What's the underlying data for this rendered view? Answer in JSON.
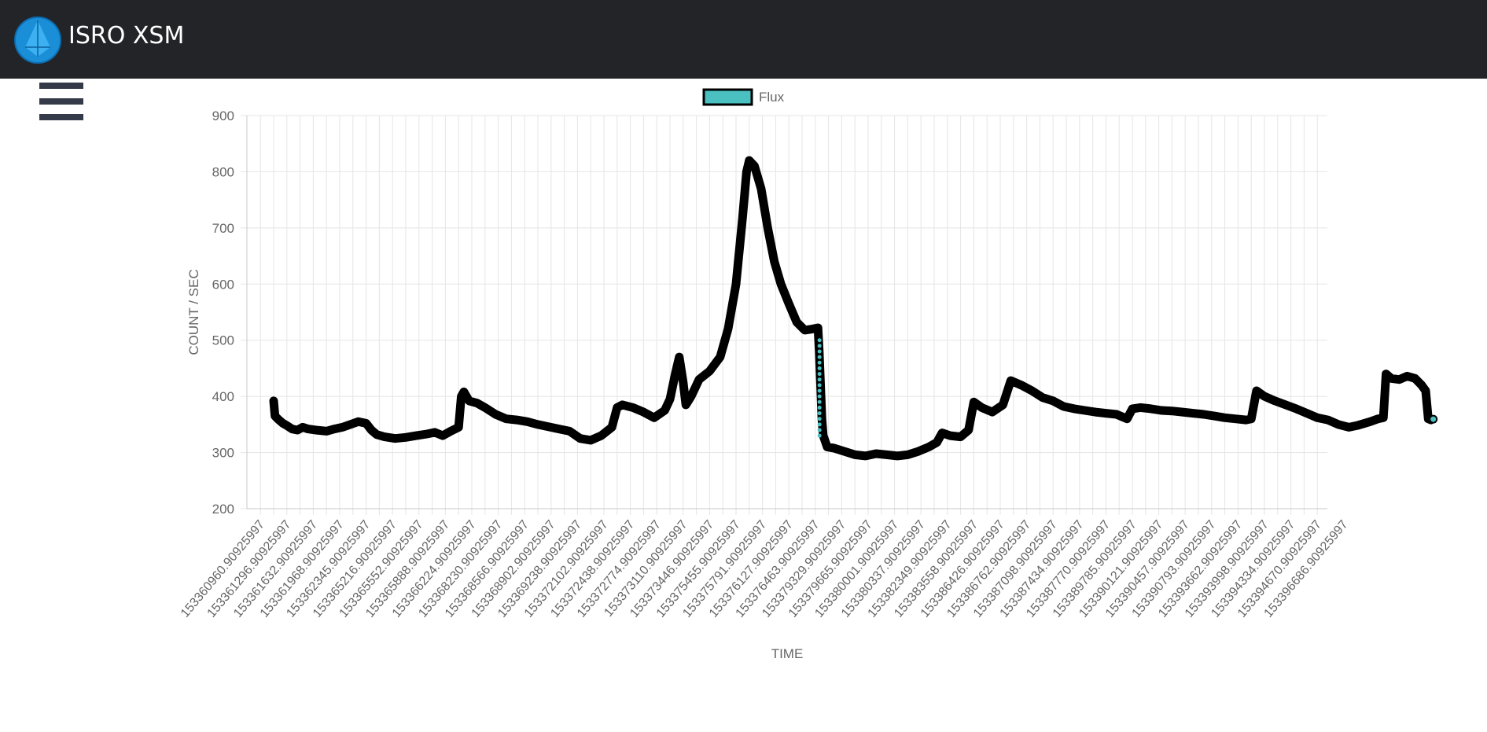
{
  "app": {
    "title": "ISRO XSM"
  },
  "navbar": {
    "logo_icon": "isro-logo-icon",
    "menu_icon": "hamburger-menu-icon"
  },
  "colors": {
    "navbar_bg": "#222428",
    "series_fill": "#4bc0c0",
    "series_line": "#000000"
  },
  "chart_data": {
    "type": "line",
    "xlabel": "TIME",
    "ylabel": "COUNT / SEC",
    "ylim": [
      200,
      900
    ],
    "yticks": [
      200,
      300,
      400,
      500,
      600,
      700,
      800,
      900
    ],
    "grid": true,
    "legend_position": "top",
    "categories": [
      "153360960.90925997",
      "153361296.90925997",
      "153361632.90925997",
      "153361968.90925997",
      "153362345.90925997",
      "153365216.90925997",
      "153365552.90925997",
      "153365888.90925997",
      "153366224.90925997",
      "153368230.90925997",
      "153368566.90925997",
      "153368902.90925997",
      "153369238.90925997",
      "153372102.90925997",
      "153372438.90925997",
      "153372774.90925997",
      "153373110.90925997",
      "153373446.90925997",
      "153375455.90925997",
      "153375791.90925997",
      "153376127.90925997",
      "153376463.90925997",
      "153379329.90925997",
      "153379665.90925997",
      "153380001.90925997",
      "153380337.90925997",
      "153382349.90925997",
      "153383558.90925997",
      "153386426.90925997",
      "153386762.90925997",
      "153387098.90925997",
      "153387434.90925997",
      "153387770.90925997",
      "153389785.90925997",
      "153390121.90925997",
      "153390457.90925997",
      "153390793.90925997",
      "153393662.90925997",
      "153393998.90925997",
      "153394334.90925997",
      "153394670.90925997",
      "153396686.90925997"
    ],
    "series": [
      {
        "name": "Flux",
        "points": [
          [
            0,
            392
          ],
          [
            0.05,
            365
          ],
          [
            0.2,
            358
          ],
          [
            0.35,
            352
          ],
          [
            0.5,
            348
          ],
          [
            0.7,
            342
          ],
          [
            0.9,
            340
          ],
          [
            1.1,
            345
          ],
          [
            1.3,
            342
          ],
          [
            1.6,
            340
          ],
          [
            2.0,
            338
          ],
          [
            2.3,
            342
          ],
          [
            2.6,
            345
          ],
          [
            2.9,
            350
          ],
          [
            3.2,
            355
          ],
          [
            3.5,
            352
          ],
          [
            3.7,
            340
          ],
          [
            3.9,
            332
          ],
          [
            4.2,
            328
          ],
          [
            4.6,
            325
          ],
          [
            5.0,
            327
          ],
          [
            5.4,
            330
          ],
          [
            5.8,
            333
          ],
          [
            6.1,
            336
          ],
          [
            6.4,
            330
          ],
          [
            6.7,
            338
          ],
          [
            7.0,
            345
          ],
          [
            7.1,
            400
          ],
          [
            7.2,
            408
          ],
          [
            7.4,
            392
          ],
          [
            7.7,
            388
          ],
          [
            8.0,
            380
          ],
          [
            8.4,
            368
          ],
          [
            8.8,
            360
          ],
          [
            9.2,
            358
          ],
          [
            9.6,
            355
          ],
          [
            10.0,
            350
          ],
          [
            10.4,
            346
          ],
          [
            10.8,
            342
          ],
          [
            11.2,
            338
          ],
          [
            11.6,
            325
          ],
          [
            12.0,
            322
          ],
          [
            12.4,
            330
          ],
          [
            12.8,
            345
          ],
          [
            13.0,
            380
          ],
          [
            13.2,
            385
          ],
          [
            13.6,
            380
          ],
          [
            14.0,
            372
          ],
          [
            14.4,
            362
          ],
          [
            14.8,
            375
          ],
          [
            15.0,
            395
          ],
          [
            15.2,
            440
          ],
          [
            15.35,
            470
          ],
          [
            15.5,
            425
          ],
          [
            15.6,
            385
          ],
          [
            15.8,
            400
          ],
          [
            16.1,
            430
          ],
          [
            16.5,
            445
          ],
          [
            16.9,
            470
          ],
          [
            17.2,
            520
          ],
          [
            17.5,
            600
          ],
          [
            17.75,
            720
          ],
          [
            17.9,
            800
          ],
          [
            18.0,
            820
          ],
          [
            18.2,
            810
          ],
          [
            18.45,
            770
          ],
          [
            18.7,
            700
          ],
          [
            18.95,
            640
          ],
          [
            19.2,
            600
          ],
          [
            19.5,
            565
          ],
          [
            19.8,
            532
          ],
          [
            20.1,
            518
          ],
          [
            20.4,
            520
          ],
          [
            20.6,
            522
          ],
          [
            20.65,
            480
          ],
          [
            20.7,
            420
          ],
          [
            20.75,
            360
          ],
          [
            20.8,
            330
          ],
          [
            20.95,
            310
          ],
          [
            21.2,
            308
          ],
          [
            21.6,
            302
          ],
          [
            22.0,
            296
          ],
          [
            22.4,
            294
          ],
          [
            22.8,
            298
          ],
          [
            23.2,
            296
          ],
          [
            23.6,
            294
          ],
          [
            24.0,
            296
          ],
          [
            24.4,
            302
          ],
          [
            24.8,
            310
          ],
          [
            25.1,
            318
          ],
          [
            25.3,
            335
          ],
          [
            25.6,
            330
          ],
          [
            26.0,
            328
          ],
          [
            26.3,
            340
          ],
          [
            26.5,
            390
          ],
          [
            26.8,
            380
          ],
          [
            27.2,
            372
          ],
          [
            27.6,
            385
          ],
          [
            27.9,
            428
          ],
          [
            28.3,
            420
          ],
          [
            28.7,
            410
          ],
          [
            29.1,
            398
          ],
          [
            29.5,
            392
          ],
          [
            29.9,
            382
          ],
          [
            30.3,
            378
          ],
          [
            30.7,
            375
          ],
          [
            31.1,
            372
          ],
          [
            31.5,
            370
          ],
          [
            31.9,
            368
          ],
          [
            32.3,
            360
          ],
          [
            32.5,
            378
          ],
          [
            32.8,
            380
          ],
          [
            33.2,
            378
          ],
          [
            33.6,
            375
          ],
          [
            34.0,
            374
          ],
          [
            34.4,
            372
          ],
          [
            34.8,
            370
          ],
          [
            35.2,
            368
          ],
          [
            35.6,
            365
          ],
          [
            36.0,
            362
          ],
          [
            36.4,
            360
          ],
          [
            36.8,
            358
          ],
          [
            37.0,
            360
          ],
          [
            37.2,
            410
          ],
          [
            37.5,
            400
          ],
          [
            37.9,
            392
          ],
          [
            38.3,
            385
          ],
          [
            38.7,
            378
          ],
          [
            39.1,
            370
          ],
          [
            39.5,
            362
          ],
          [
            39.9,
            358
          ],
          [
            40.3,
            350
          ],
          [
            40.7,
            345
          ],
          [
            41.0,
            348
          ],
          [
            41.5,
            355
          ],
          [
            41.8,
            360
          ],
          [
            42.0,
            362
          ],
          [
            42.1,
            440
          ],
          [
            42.3,
            432
          ],
          [
            42.6,
            430
          ],
          [
            42.9,
            436
          ],
          [
            43.2,
            432
          ],
          [
            43.45,
            420
          ],
          [
            43.6,
            410
          ],
          [
            43.7,
            360
          ],
          [
            43.8,
            358
          ]
        ]
      }
    ]
  }
}
